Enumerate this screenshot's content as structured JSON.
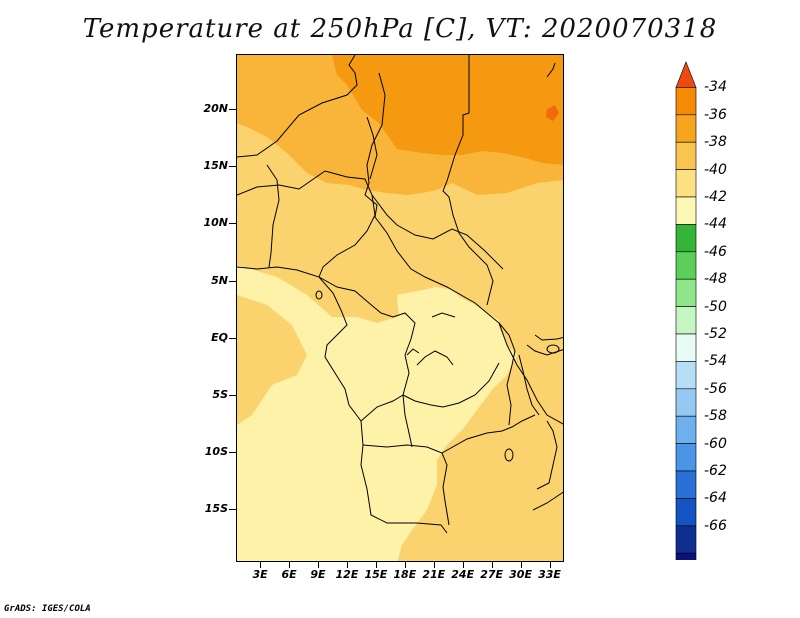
{
  "title": "Temperature at 250hPa [C], VT: 2020070318",
  "footer": "GrADS: IGES/COLA",
  "map": {
    "lat_labels": [
      {
        "label": "20N",
        "lat": 20
      },
      {
        "label": "15N",
        "lat": 15
      },
      {
        "label": "10N",
        "lat": 10
      },
      {
        "label": "5N",
        "lat": 5
      },
      {
        "label": "EQ",
        "lat": 0
      },
      {
        "label": "5S",
        "lat": -5
      },
      {
        "label": "10S",
        "lat": -10
      },
      {
        "label": "15S",
        "lat": -15
      }
    ],
    "lon_labels": [
      {
        "label": "3E",
        "lon": 3
      },
      {
        "label": "6E",
        "lon": 6
      },
      {
        "label": "9E",
        "lon": 9
      },
      {
        "label": "12E",
        "lon": 12
      },
      {
        "label": "15E",
        "lon": 15
      },
      {
        "label": "18E",
        "lon": 18
      },
      {
        "label": "21E",
        "lon": 21
      },
      {
        "label": "24E",
        "lon": 24
      },
      {
        "label": "27E",
        "lon": 27
      },
      {
        "label": "30E",
        "lon": 30
      },
      {
        "label": "33E",
        "lon": 33
      }
    ],
    "fill_colors": {
      "minus36": "#f59a10",
      "minus38": "#f9b43a",
      "minus40": "#fbd36e",
      "minus42": "#fdf2a8",
      "minus34": "#f36a0a"
    }
  },
  "colorbar": {
    "labels": [
      "-34",
      "-36",
      "-38",
      "-40",
      "-42",
      "-44",
      "-46",
      "-48",
      "-50",
      "-52",
      "-54",
      "-56",
      "-58",
      "-60",
      "-62",
      "-64",
      "-66"
    ],
    "colors": [
      "#ee4a10",
      "#f58b05",
      "#f7a51e",
      "#f9c450",
      "#fbe181",
      "#fdf7b5",
      "#35b437",
      "#5ccf5a",
      "#8fe68a",
      "#c5f5c0",
      "#e8fbf6",
      "#b8ddf7",
      "#95c8f3",
      "#6fb1ee",
      "#4a95e6",
      "#2970d6",
      "#1453c2",
      "#0e2f8f",
      "#0b137a",
      "#e6e6fb"
    ]
  }
}
